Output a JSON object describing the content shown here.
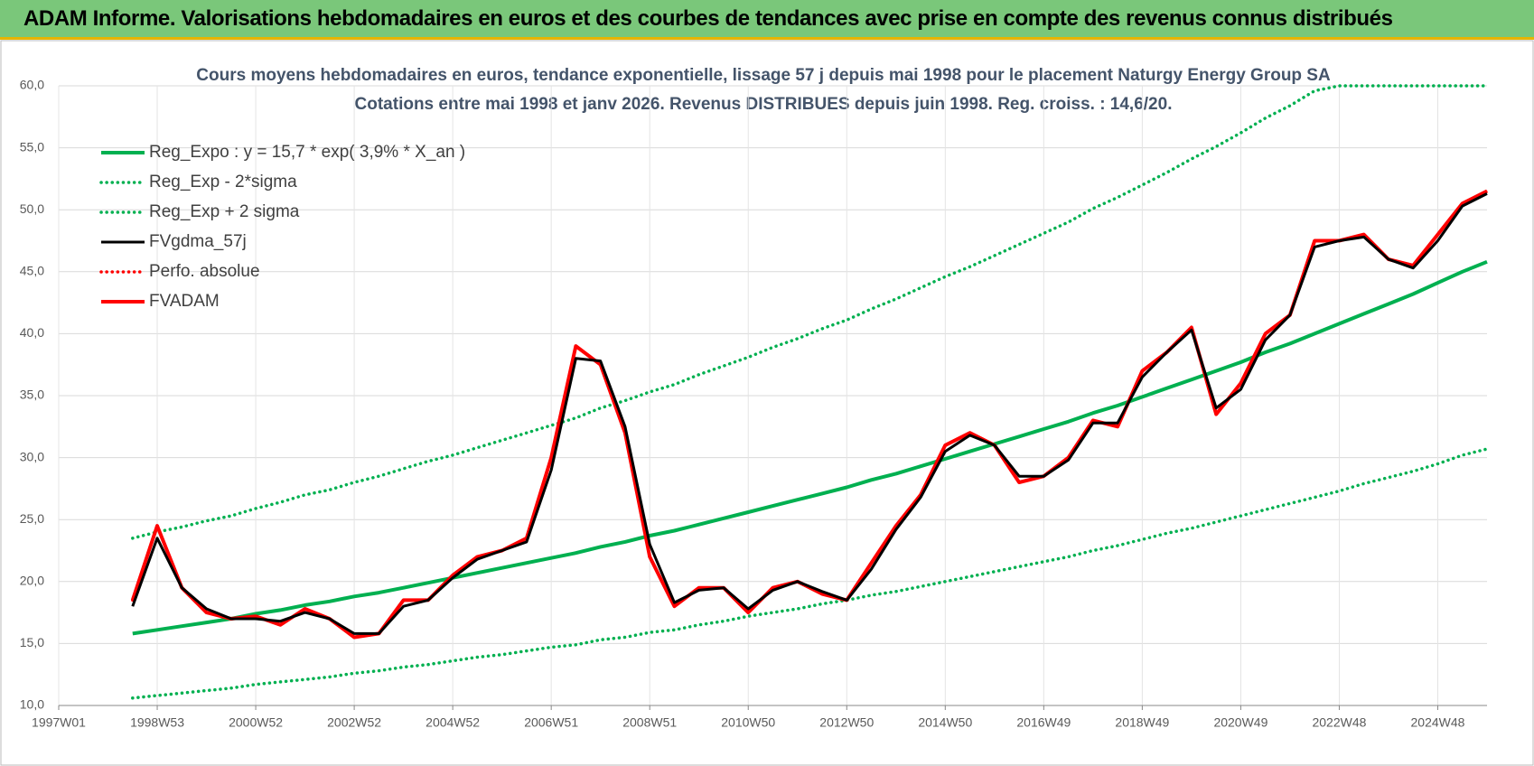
{
  "header": "ADAM Informe. Valorisations hebdomadaires en euros et des courbes de tendances avec prise en compte des revenus connus distribués",
  "chart_data": {
    "type": "line",
    "title": "Cours moyens hebdomadaires en euros, tendance exponentielle, lissage 57 j depuis mai 1998 pour le placement Naturgy Energy Group SA",
    "subtitle": "Cotations entre mai 1998 et janv 2026. Revenus DISTRIBUES depuis juin 1998. Reg. croiss. : 14,6/20.",
    "categories": [
      "1997W01",
      null,
      null,
      null,
      "1998W53",
      null,
      null,
      null,
      "2000W52",
      null,
      null,
      null,
      "2002W52",
      null,
      null,
      null,
      "2004W52",
      null,
      null,
      null,
      "2006W51",
      null,
      null,
      null,
      "2008W51",
      null,
      null,
      null,
      "2010W50",
      null,
      null,
      null,
      "2012W50",
      null,
      null,
      null,
      "2014W50",
      null,
      null,
      null,
      "2016W49",
      null,
      null,
      null,
      "2018W49",
      null,
      null,
      null,
      "2020W49",
      null,
      null,
      null,
      "2022W48",
      null,
      null,
      null,
      "2024W48",
      null,
      null
    ],
    "ylim": [
      10,
      60
    ],
    "yticks": [
      {
        "value": 10,
        "label": "10,0"
      },
      {
        "value": 15,
        "label": "15,0"
      },
      {
        "value": 20,
        "label": "20,0"
      },
      {
        "value": 25,
        "label": "25,0"
      },
      {
        "value": 30,
        "label": "30,0"
      },
      {
        "value": 35,
        "label": "35,0"
      },
      {
        "value": 40,
        "label": "40,0"
      },
      {
        "value": 45,
        "label": "45,0"
      },
      {
        "value": 50,
        "label": "50,0"
      },
      {
        "value": 55,
        "label": "55,0"
      },
      {
        "value": 60,
        "label": "60,0"
      }
    ],
    "grid": true,
    "legend": "upper-left",
    "series": [
      {
        "name": "Reg_Expo : y = 15,7 * exp( 3,9% *  X_an )",
        "color": "#00b050",
        "style": "solid",
        "values": [
          null,
          null,
          null,
          15.8,
          16.1,
          16.4,
          16.7,
          17.0,
          17.4,
          17.7,
          18.1,
          18.4,
          18.8,
          19.1,
          19.5,
          19.9,
          20.3,
          20.7,
          21.1,
          21.5,
          21.9,
          22.3,
          22.8,
          23.2,
          23.7,
          24.1,
          24.6,
          25.1,
          25.6,
          26.1,
          26.6,
          27.1,
          27.6,
          28.2,
          28.7,
          29.3,
          29.9,
          30.5,
          31.1,
          31.7,
          32.3,
          32.9,
          33.6,
          34.2,
          34.9,
          35.6,
          36.3,
          37.0,
          37.7,
          38.5,
          39.2,
          40.0,
          40.8,
          41.6,
          42.4,
          43.2,
          44.1,
          45.0,
          45.8
        ]
      },
      {
        "name": "Reg_Exp - 2*sigma",
        "color": "#00b050",
        "style": "dotted",
        "values": [
          null,
          null,
          null,
          10.6,
          10.8,
          11.0,
          11.2,
          11.4,
          11.7,
          11.9,
          12.1,
          12.3,
          12.6,
          12.8,
          13.1,
          13.3,
          13.6,
          13.9,
          14.1,
          14.4,
          14.7,
          14.9,
          15.3,
          15.5,
          15.9,
          16.1,
          16.5,
          16.8,
          17.2,
          17.5,
          17.8,
          18.2,
          18.5,
          18.9,
          19.2,
          19.6,
          20.0,
          20.4,
          20.8,
          21.2,
          21.6,
          22.0,
          22.5,
          22.9,
          23.4,
          23.9,
          24.3,
          24.8,
          25.3,
          25.8,
          26.3,
          26.8,
          27.3,
          27.9,
          28.4,
          28.9,
          29.5,
          30.2,
          30.7
        ]
      },
      {
        "name": "Reg_Exp + 2 sigma",
        "color": "#00b050",
        "style": "dotted",
        "values": [
          null,
          null,
          null,
          23.5,
          24.0,
          24.4,
          24.9,
          25.3,
          25.9,
          26.4,
          27.0,
          27.4,
          28.0,
          28.5,
          29.1,
          29.7,
          30.2,
          30.8,
          31.4,
          32.0,
          32.6,
          33.2,
          34.0,
          34.6,
          35.3,
          35.9,
          36.7,
          37.4,
          38.1,
          38.9,
          39.6,
          40.4,
          41.1,
          42.0,
          42.8,
          43.7,
          44.6,
          45.4,
          46.3,
          47.2,
          48.1,
          49.0,
          50.1,
          51.0,
          52.0,
          53.0,
          54.1,
          55.1,
          56.2,
          57.4,
          58.4,
          59.6,
          60,
          60,
          60,
          60,
          60,
          60,
          60
        ]
      },
      {
        "name": "FVgdma_57j",
        "color": "#000000",
        "style": "solid",
        "values": [
          null,
          null,
          null,
          18.0,
          23.5,
          19.5,
          17.8,
          17.0,
          17.0,
          16.8,
          17.5,
          17.0,
          15.8,
          15.8,
          18.0,
          18.5,
          20.3,
          21.8,
          22.5,
          23.2,
          29.0,
          38.0,
          37.8,
          32.5,
          23.0,
          18.3,
          19.3,
          19.5,
          17.8,
          19.3,
          20.0,
          19.2,
          18.5,
          21.0,
          24.2,
          26.8,
          30.5,
          31.8,
          31.0,
          28.5,
          28.5,
          29.8,
          32.8,
          32.8,
          36.5,
          38.5,
          40.3,
          34.0,
          35.5,
          39.5,
          41.5,
          47.0,
          47.5,
          47.8,
          46.0,
          45.3,
          47.5,
          50.3,
          51.3
        ]
      },
      {
        "name": "Perfo. absolue",
        "color": "#ff0000",
        "style": "dotted",
        "values": [
          null,
          null,
          null,
          18.5,
          24.5,
          19.5,
          17.5,
          17.0,
          17.2,
          16.5,
          17.8,
          17.0,
          15.5,
          15.8,
          18.5,
          18.5,
          20.5,
          22.0,
          22.5,
          23.5,
          30.0,
          39.0,
          37.5,
          32.0,
          22.0,
          18.0,
          19.5,
          19.5,
          17.5,
          19.5,
          20.0,
          19.0,
          18.5,
          21.5,
          24.5,
          27.0,
          31.0,
          32.0,
          31.0,
          28.0,
          28.5,
          30.0,
          33.0,
          32.5,
          37.0,
          38.5,
          40.5,
          33.5,
          36.0,
          40.0,
          41.5,
          47.5,
          47.5,
          48.0,
          46.0,
          45.5,
          48.0,
          50.5,
          51.5
        ]
      },
      {
        "name": "FVADAM",
        "color": "#ff0000",
        "style": "solid",
        "values": [
          null,
          null,
          null,
          18.5,
          24.5,
          19.5,
          17.5,
          17.0,
          17.2,
          16.5,
          17.8,
          17.0,
          15.5,
          15.8,
          18.5,
          18.5,
          20.5,
          22.0,
          22.5,
          23.5,
          30.0,
          39.0,
          37.5,
          32.0,
          22.0,
          18.0,
          19.5,
          19.5,
          17.5,
          19.5,
          20.0,
          19.0,
          18.5,
          21.5,
          24.5,
          27.0,
          31.0,
          32.0,
          31.0,
          28.0,
          28.5,
          30.0,
          33.0,
          32.5,
          37.0,
          38.5,
          40.5,
          33.5,
          36.0,
          40.0,
          41.5,
          47.5,
          47.5,
          48.0,
          46.0,
          45.5,
          48.0,
          50.5,
          51.5
        ]
      }
    ]
  }
}
